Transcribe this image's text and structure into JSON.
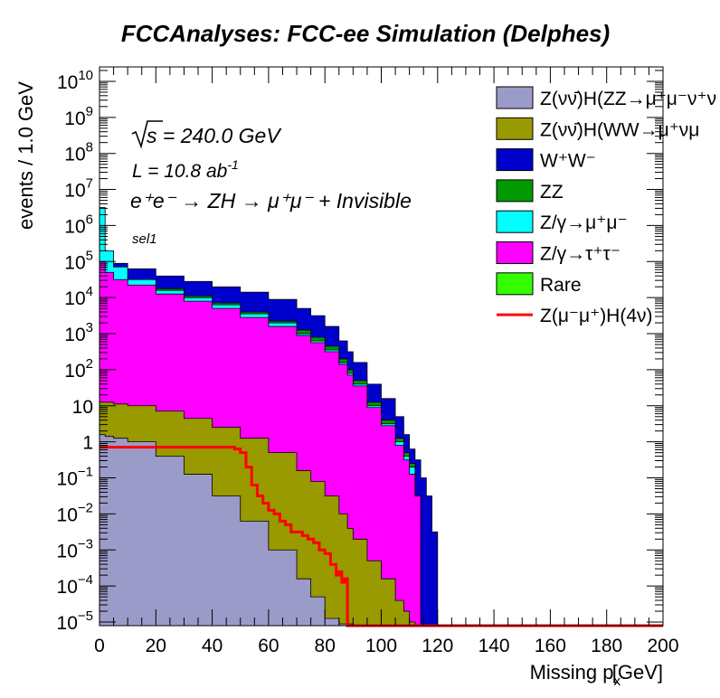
{
  "chart_data": {
    "type": "area",
    "title": "FCCAnalyses: FCC-ee Simulation (Delphes)",
    "xlabel_main": "Missing p",
    "xlabel_sub": "x",
    "xlabel_unit": "[GeV]",
    "ylabel": "events / 1.0 GeV",
    "xlim": [
      0,
      200
    ],
    "ylim_log10": [
      -5.1,
      10.4
    ],
    "y_scale": "log",
    "x_ticks": [
      "0",
      "20",
      "40",
      "60",
      "80",
      "100",
      "120",
      "140",
      "160",
      "180",
      "200"
    ],
    "y_ticks": [
      {
        "base": "10",
        "exp": "10"
      },
      {
        "base": "10",
        "exp": "9"
      },
      {
        "base": "10",
        "exp": "8"
      },
      {
        "base": "10",
        "exp": "7"
      },
      {
        "base": "10",
        "exp": "6"
      },
      {
        "base": "10",
        "exp": "5"
      },
      {
        "base": "10",
        "exp": "4"
      },
      {
        "base": "10",
        "exp": "3"
      },
      {
        "base": "10",
        "exp": "2"
      },
      {
        "base": "10",
        "exp": ""
      },
      {
        "base": "1",
        "exp": ""
      },
      {
        "base": "10",
        "exp": "−1"
      },
      {
        "base": "10",
        "exp": "−2"
      },
      {
        "base": "10",
        "exp": "−3"
      },
      {
        "base": "10",
        "exp": "−4"
      },
      {
        "base": "10",
        "exp": "−5"
      }
    ],
    "annotations": {
      "sqrt_s": "s = 240.0 GeV",
      "lumi": "L = 10.8 ab",
      "lumi_exp": "-1",
      "process": "e⁺e⁻ → ZH → μ⁺μ⁻ + Invisible",
      "selection": "sel1"
    },
    "legend_position": "top-right",
    "x_points": [
      0,
      2,
      5,
      10,
      20,
      30,
      40,
      50,
      60,
      70,
      75,
      80,
      85,
      88,
      90,
      95,
      100,
      105,
      108,
      110,
      112,
      114,
      116,
      118,
      120
    ],
    "stack_series": [
      {
        "name": "Z(νν̄)H(ZZ→μ⁺μ⁻ν⁺ν⁻)",
        "color": "#9b9bc9",
        "log10_values": [
          0.2,
          0.15,
          0.1,
          0,
          -0.4,
          -0.9,
          -1.5,
          -2.2,
          -3.0,
          -3.8,
          -4.3,
          -4.9,
          -5.05,
          -5.05,
          -5.1,
          -5.1,
          -5.1,
          -5.1,
          -5.1,
          -5.1,
          -5.1,
          -5.1,
          -5.1,
          -5.1,
          -5.1
        ]
      },
      {
        "name": "Z(νν̄)H(WW→μ⁺νμ⁻ν)",
        "color": "#999900",
        "log10_values": [
          1.1,
          1.1,
          1.05,
          1.0,
          0.85,
          0.65,
          0.4,
          0.1,
          -0.3,
          -0.8,
          -1.1,
          -1.5,
          -2.0,
          -2.4,
          -2.7,
          -3.3,
          -3.8,
          -4.4,
          -4.7,
          -5.0,
          -5.1,
          -5.1,
          -5.1,
          -5.1,
          -5.1
        ]
      },
      {
        "name": "W⁺W⁻",
        "color": "#0000cc",
        "log10_values": [
          5.3,
          5.1,
          4.95,
          4.8,
          4.6,
          4.45,
          4.3,
          4.15,
          3.95,
          3.7,
          3.5,
          3.2,
          2.8,
          2.5,
          2.2,
          1.6,
          1.2,
          0.7,
          0.2,
          -0.2,
          -0.5,
          -1.0,
          -1.5,
          -2.5,
          -5.1
        ]
      },
      {
        "name": "ZZ",
        "color": "#009900",
        "log10_values": [
          5.1,
          4.8,
          4.6,
          4.45,
          4.25,
          4.05,
          3.85,
          3.6,
          3.35,
          3.1,
          2.9,
          2.65,
          2.3,
          2.0,
          1.7,
          1.1,
          0.6,
          0.1,
          -0.3,
          -0.6,
          -1.5,
          -5.1,
          -5.1,
          -5.1,
          -5.1
        ]
      },
      {
        "name": "Z/γ→μ⁺μ⁻",
        "color": "#00ffff",
        "log10_values": [
          6.5,
          5.3,
          4.85,
          4.5,
          4.2,
          4.0,
          3.8,
          3.55,
          3.3,
          3.0,
          2.8,
          2.55,
          2.2,
          1.9,
          1.6,
          1.0,
          0.5,
          0.0,
          -0.4,
          -0.7,
          -1.5,
          -5.1,
          -5.1,
          -5.1,
          -5.1
        ]
      },
      {
        "name": "Z/γ→τ⁺τ⁻",
        "color": "#ff00ff",
        "log10_values": [
          5.0,
          4.7,
          4.5,
          4.35,
          4.1,
          3.9,
          3.7,
          3.45,
          3.2,
          2.95,
          2.75,
          2.5,
          2.15,
          1.85,
          1.55,
          0.95,
          0.45,
          -0.1,
          -0.5,
          -0.9,
          -1.5,
          -5.1,
          -5.1,
          -5.1,
          -5.1
        ]
      },
      {
        "name": "Rare",
        "color": "#33ff00",
        "log10_values": [
          -5.1,
          -5.1,
          -5.1,
          -5.1,
          -5.1,
          -5.1,
          -5.1,
          -5.1,
          -5.1,
          -5.1,
          -5.1,
          -5.1,
          -5.1,
          -5.1,
          -5.1,
          -5.1,
          -5.1,
          -5.1,
          -5.1,
          -5.1,
          -5.1,
          -5.1,
          -5.1,
          -5.1,
          -5.1
        ]
      }
    ],
    "signal_series": {
      "name": "Z(μ⁻μ⁺)H(4ν)",
      "color": "#ff0000",
      "x": [
        0,
        10,
        20,
        30,
        40,
        48,
        50,
        52,
        54,
        56,
        58,
        60,
        62,
        64,
        66,
        68,
        70,
        72,
        74,
        76,
        78,
        80,
        82,
        84,
        85,
        86,
        87,
        88,
        200
      ],
      "log10_values": [
        -0.15,
        -0.15,
        -0.15,
        -0.15,
        -0.15,
        -0.2,
        -0.3,
        -0.7,
        -1.2,
        -1.5,
        -1.7,
        -1.9,
        -2.0,
        -2.2,
        -2.3,
        -2.5,
        -2.5,
        -2.6,
        -2.7,
        -2.8,
        -3.0,
        -3.1,
        -3.4,
        -3.7,
        -3.6,
        -3.9,
        -3.8,
        -5.1,
        -5.1
      ]
    },
    "legend": [
      {
        "label": "Z(νν̄)H(ZZ→μ⁺μ⁻ν⁺ν",
        "color": "#9b9bc9",
        "kind": "box"
      },
      {
        "label": "Z(νν̄)H(WW→μ⁺νμ",
        "color": "#999900",
        "kind": "box"
      },
      {
        "label": "W⁺W⁻",
        "color": "#0000cc",
        "kind": "box"
      },
      {
        "label": "ZZ",
        "color": "#009900",
        "kind": "box"
      },
      {
        "label": "Z/γ→μ⁺μ⁻",
        "color": "#00ffff",
        "kind": "box"
      },
      {
        "label": "Z/γ→τ⁺τ⁻",
        "color": "#ff00ff",
        "kind": "box"
      },
      {
        "label": "Rare",
        "color": "#33ff00",
        "kind": "box"
      },
      {
        "label": "Z(μ⁻μ⁺)H(4ν)",
        "color": "#ff0000",
        "kind": "line"
      }
    ]
  }
}
